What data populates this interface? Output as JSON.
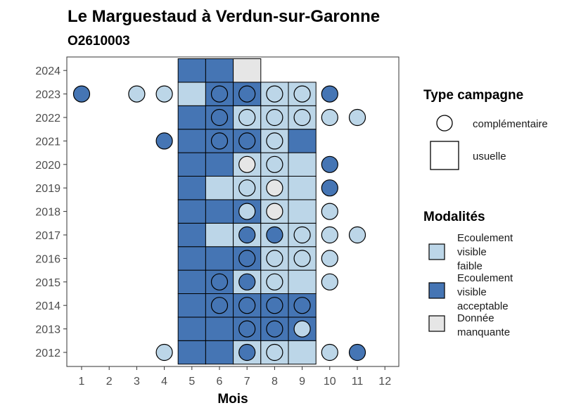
{
  "chart_data": {
    "type": "heatmap",
    "title": "Le Marguestaud à Verdun-sur-Garonne",
    "subtitle": "O2610003",
    "xlabel": "Mois",
    "x_ticks": [
      "1",
      "2",
      "3",
      "4",
      "5",
      "6",
      "7",
      "8",
      "9",
      "10",
      "11",
      "12"
    ],
    "y_ticks": [
      "2012",
      "2013",
      "2014",
      "2015",
      "2016",
      "2017",
      "2018",
      "2019",
      "2020",
      "2021",
      "2022",
      "2023",
      "2024"
    ],
    "modalities": {
      "faible": {
        "label": "Ecoulement visible faible",
        "label_lines": [
          "Ecoulement",
          "visible",
          "faible"
        ],
        "color": "#bcd6e8"
      },
      "acceptable": {
        "label": "Ecoulement visible acceptable",
        "label_lines": [
          "Ecoulement",
          "visible",
          "acceptable"
        ],
        "color": "#4575b4"
      },
      "manquante": {
        "label": "Donnée manquante",
        "label_lines": [
          "Donnée",
          "manquante"
        ],
        "color": "#e6e6e6"
      }
    },
    "campaign_types": {
      "title": "Type campagne",
      "complementaire": "complémentaire",
      "usuelle": "usuelle"
    },
    "modalities_title": "Modalités",
    "usuelle": [
      {
        "year": 2012,
        "month": 5,
        "mod": "acceptable"
      },
      {
        "year": 2012,
        "month": 6,
        "mod": "acceptable"
      },
      {
        "year": 2012,
        "month": 7,
        "mod": "faible"
      },
      {
        "year": 2012,
        "month": 8,
        "mod": "faible"
      },
      {
        "year": 2012,
        "month": 9,
        "mod": "faible"
      },
      {
        "year": 2013,
        "month": 5,
        "mod": "acceptable"
      },
      {
        "year": 2013,
        "month": 6,
        "mod": "acceptable"
      },
      {
        "year": 2013,
        "month": 7,
        "mod": "acceptable"
      },
      {
        "year": 2013,
        "month": 8,
        "mod": "acceptable"
      },
      {
        "year": 2013,
        "month": 9,
        "mod": "acceptable"
      },
      {
        "year": 2014,
        "month": 5,
        "mod": "acceptable"
      },
      {
        "year": 2014,
        "month": 6,
        "mod": "acceptable"
      },
      {
        "year": 2014,
        "month": 7,
        "mod": "acceptable"
      },
      {
        "year": 2014,
        "month": 8,
        "mod": "acceptable"
      },
      {
        "year": 2014,
        "month": 9,
        "mod": "acceptable"
      },
      {
        "year": 2015,
        "month": 5,
        "mod": "acceptable"
      },
      {
        "year": 2015,
        "month": 6,
        "mod": "acceptable"
      },
      {
        "year": 2015,
        "month": 7,
        "mod": "faible"
      },
      {
        "year": 2015,
        "month": 8,
        "mod": "faible"
      },
      {
        "year": 2015,
        "month": 9,
        "mod": "faible"
      },
      {
        "year": 2016,
        "month": 5,
        "mod": "acceptable"
      },
      {
        "year": 2016,
        "month": 6,
        "mod": "acceptable"
      },
      {
        "year": 2016,
        "month": 7,
        "mod": "acceptable"
      },
      {
        "year": 2016,
        "month": 8,
        "mod": "faible"
      },
      {
        "year": 2016,
        "month": 9,
        "mod": "faible"
      },
      {
        "year": 2017,
        "month": 5,
        "mod": "acceptable"
      },
      {
        "year": 2017,
        "month": 6,
        "mod": "faible"
      },
      {
        "year": 2017,
        "month": 7,
        "mod": "faible"
      },
      {
        "year": 2017,
        "month": 8,
        "mod": "faible"
      },
      {
        "year": 2017,
        "month": 9,
        "mod": "faible"
      },
      {
        "year": 2018,
        "month": 5,
        "mod": "acceptable"
      },
      {
        "year": 2018,
        "month": 6,
        "mod": "acceptable"
      },
      {
        "year": 2018,
        "month": 7,
        "mod": "acceptable"
      },
      {
        "year": 2018,
        "month": 8,
        "mod": "faible"
      },
      {
        "year": 2018,
        "month": 9,
        "mod": "faible"
      },
      {
        "year": 2019,
        "month": 5,
        "mod": "acceptable"
      },
      {
        "year": 2019,
        "month": 6,
        "mod": "faible"
      },
      {
        "year": 2019,
        "month": 7,
        "mod": "faible"
      },
      {
        "year": 2019,
        "month": 8,
        "mod": "faible"
      },
      {
        "year": 2019,
        "month": 9,
        "mod": "faible"
      },
      {
        "year": 2020,
        "month": 5,
        "mod": "acceptable"
      },
      {
        "year": 2020,
        "month": 6,
        "mod": "acceptable"
      },
      {
        "year": 2020,
        "month": 7,
        "mod": "faible"
      },
      {
        "year": 2020,
        "month": 8,
        "mod": "faible"
      },
      {
        "year": 2020,
        "month": 9,
        "mod": "faible"
      },
      {
        "year": 2021,
        "month": 5,
        "mod": "acceptable"
      },
      {
        "year": 2021,
        "month": 6,
        "mod": "acceptable"
      },
      {
        "year": 2021,
        "month": 7,
        "mod": "acceptable"
      },
      {
        "year": 2021,
        "month": 8,
        "mod": "faible"
      },
      {
        "year": 2021,
        "month": 9,
        "mod": "acceptable"
      },
      {
        "year": 2022,
        "month": 5,
        "mod": "acceptable"
      },
      {
        "year": 2022,
        "month": 6,
        "mod": "acceptable"
      },
      {
        "year": 2022,
        "month": 7,
        "mod": "faible"
      },
      {
        "year": 2022,
        "month": 8,
        "mod": "faible"
      },
      {
        "year": 2022,
        "month": 9,
        "mod": "faible"
      },
      {
        "year": 2023,
        "month": 5,
        "mod": "faible"
      },
      {
        "year": 2023,
        "month": 6,
        "mod": "acceptable"
      },
      {
        "year": 2023,
        "month": 7,
        "mod": "acceptable"
      },
      {
        "year": 2023,
        "month": 8,
        "mod": "faible"
      },
      {
        "year": 2023,
        "month": 9,
        "mod": "faible"
      },
      {
        "year": 2024,
        "month": 5,
        "mod": "acceptable"
      },
      {
        "year": 2024,
        "month": 6,
        "mod": "acceptable"
      },
      {
        "year": 2024,
        "month": 7,
        "mod": "manquante"
      }
    ],
    "complementaire": [
      {
        "year": 2012,
        "month": 4,
        "mod": "faible"
      },
      {
        "year": 2012,
        "month": 7,
        "mod": "acceptable"
      },
      {
        "year": 2012,
        "month": 8,
        "mod": "faible"
      },
      {
        "year": 2012,
        "month": 10,
        "mod": "faible"
      },
      {
        "year": 2012,
        "month": 11,
        "mod": "acceptable"
      },
      {
        "year": 2013,
        "month": 7,
        "mod": "acceptable"
      },
      {
        "year": 2013,
        "month": 8,
        "mod": "acceptable"
      },
      {
        "year": 2013,
        "month": 9,
        "mod": "faible"
      },
      {
        "year": 2014,
        "month": 6,
        "mod": "acceptable"
      },
      {
        "year": 2014,
        "month": 7,
        "mod": "acceptable"
      },
      {
        "year": 2014,
        "month": 8,
        "mod": "acceptable"
      },
      {
        "year": 2014,
        "month": 9,
        "mod": "acceptable"
      },
      {
        "year": 2015,
        "month": 6,
        "mod": "acceptable"
      },
      {
        "year": 2015,
        "month": 7,
        "mod": "acceptable"
      },
      {
        "year": 2015,
        "month": 8,
        "mod": "faible"
      },
      {
        "year": 2015,
        "month": 10,
        "mod": "faible"
      },
      {
        "year": 2016,
        "month": 7,
        "mod": "acceptable"
      },
      {
        "year": 2016,
        "month": 8,
        "mod": "faible"
      },
      {
        "year": 2016,
        "month": 9,
        "mod": "faible"
      },
      {
        "year": 2016,
        "month": 10,
        "mod": "faible"
      },
      {
        "year": 2017,
        "month": 7,
        "mod": "acceptable"
      },
      {
        "year": 2017,
        "month": 8,
        "mod": "acceptable"
      },
      {
        "year": 2017,
        "month": 9,
        "mod": "faible"
      },
      {
        "year": 2017,
        "month": 10,
        "mod": "faible"
      },
      {
        "year": 2017,
        "month": 11,
        "mod": "faible"
      },
      {
        "year": 2018,
        "month": 7,
        "mod": "faible"
      },
      {
        "year": 2018,
        "month": 8,
        "mod": "manquante"
      },
      {
        "year": 2018,
        "month": 10,
        "mod": "faible"
      },
      {
        "year": 2019,
        "month": 7,
        "mod": "faible"
      },
      {
        "year": 2019,
        "month": 8,
        "mod": "manquante"
      },
      {
        "year": 2019,
        "month": 10,
        "mod": "acceptable"
      },
      {
        "year": 2020,
        "month": 7,
        "mod": "manquante"
      },
      {
        "year": 2020,
        "month": 8,
        "mod": "faible"
      },
      {
        "year": 2020,
        "month": 10,
        "mod": "acceptable"
      },
      {
        "year": 2021,
        "month": 4,
        "mod": "acceptable"
      },
      {
        "year": 2021,
        "month": 6,
        "mod": "acceptable"
      },
      {
        "year": 2021,
        "month": 7,
        "mod": "acceptable"
      },
      {
        "year": 2021,
        "month": 8,
        "mod": "faible"
      },
      {
        "year": 2022,
        "month": 6,
        "mod": "acceptable"
      },
      {
        "year": 2022,
        "month": 7,
        "mod": "faible"
      },
      {
        "year": 2022,
        "month": 8,
        "mod": "faible"
      },
      {
        "year": 2022,
        "month": 9,
        "mod": "faible"
      },
      {
        "year": 2022,
        "month": 10,
        "mod": "faible"
      },
      {
        "year": 2022,
        "month": 11,
        "mod": "faible"
      },
      {
        "year": 2023,
        "month": 1,
        "mod": "acceptable"
      },
      {
        "year": 2023,
        "month": 3,
        "mod": "faible"
      },
      {
        "year": 2023,
        "month": 4,
        "mod": "faible"
      },
      {
        "year": 2023,
        "month": 6,
        "mod": "acceptable"
      },
      {
        "year": 2023,
        "month": 7,
        "mod": "acceptable"
      },
      {
        "year": 2023,
        "month": 8,
        "mod": "faible"
      },
      {
        "year": 2023,
        "month": 9,
        "mod": "faible"
      },
      {
        "year": 2023,
        "month": 10,
        "mod": "acceptable"
      }
    ]
  }
}
